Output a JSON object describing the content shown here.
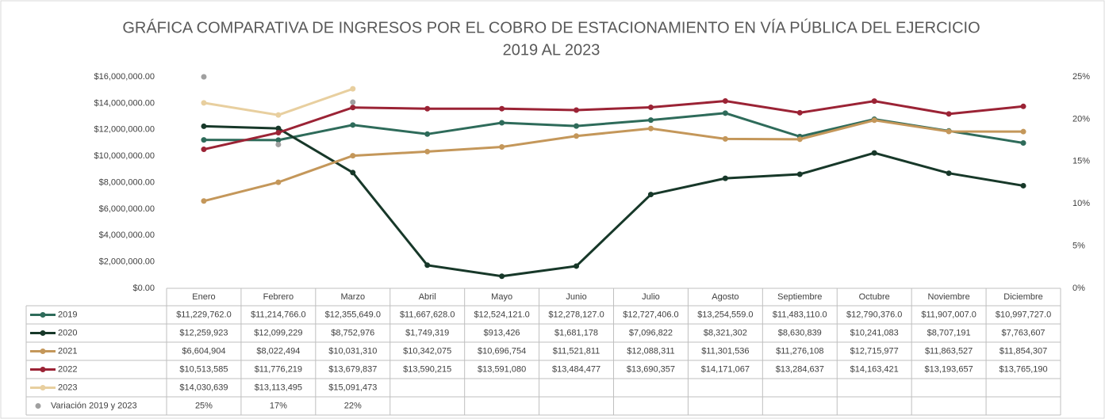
{
  "chart_data": {
    "type": "line",
    "title": [
      "GRÁFICA COMPARATIVA DE INGRESOS POR EL COBRO DE ESTACIONAMIENTO EN VÍA PÚBLICA DEL EJERCICIO",
      "2019 AL 2023"
    ],
    "categories": [
      "Enero",
      "Febrero",
      "Marzo",
      "Abril",
      "Mayo",
      "Junio",
      "Julio",
      "Agosto",
      "Septiembre",
      "Octubre",
      "Noviembre",
      "Diciembre"
    ],
    "ylim": [
      0,
      16000000
    ],
    "yticks": [
      {
        "value": 0,
        "label": "$0.00"
      },
      {
        "value": 2000000,
        "label": "$2,000,000.00"
      },
      {
        "value": 4000000,
        "label": "$4,000,000.00"
      },
      {
        "value": 6000000,
        "label": "$6,000,000.00"
      },
      {
        "value": 8000000,
        "label": "$8,000,000.00"
      },
      {
        "value": 10000000,
        "label": "$10,000,000.00"
      },
      {
        "value": 12000000,
        "label": "$12,000,000.00"
      },
      {
        "value": 14000000,
        "label": "$14,000,000.00"
      },
      {
        "value": 16000000,
        "label": "$16,000,000.00"
      }
    ],
    "y2lim": [
      0,
      25
    ],
    "y2ticks": [
      {
        "value": 0,
        "label": "0%"
      },
      {
        "value": 5,
        "label": "5%"
      },
      {
        "value": 10,
        "label": "10%"
      },
      {
        "value": 15,
        "label": "15%"
      },
      {
        "value": 20,
        "label": "20%"
      },
      {
        "value": 25,
        "label": "25%"
      }
    ],
    "grid": false,
    "series": [
      {
        "name": "2019",
        "color": "#2e6b5a",
        "values": [
          11229762,
          11214766,
          12355649,
          11667628,
          12524121,
          12278127,
          12727406,
          13254559,
          11483110,
          12790376,
          11907007,
          10997727
        ],
        "value_labels": [
          "$11,229,762.0",
          "$11,214,766.0",
          "$12,355,649.0",
          "$11,667,628.0",
          "$12,524,121.0",
          "$12,278,127.0",
          "$12,727,406.0",
          "$13,254,559.0",
          "$11,483,110.0",
          "$12,790,376.0",
          "$11,907,007.0",
          "$10,997,727.0"
        ]
      },
      {
        "name": "2020",
        "color": "#173829",
        "values": [
          12259923,
          12099229,
          8752976,
          1749319,
          913426,
          1681178,
          7096822,
          8321302,
          8630839,
          10241083,
          8707191,
          7763607
        ],
        "value_labels": [
          "$12,259,923",
          "$12,099,229",
          "$8,752,976",
          "$1,749,319",
          "$913,426",
          "$1,681,178",
          "$7,096,822",
          "$8,321,302",
          "$8,630,839",
          "$10,241,083",
          "$8,707,191",
          "$7,763,607"
        ]
      },
      {
        "name": "2021",
        "color": "#c4975a",
        "values": [
          6604904,
          8022494,
          10031310,
          10342075,
          10696754,
          11521811,
          12088311,
          11301536,
          11276108,
          12715977,
          11863527,
          11854307
        ],
        "value_labels": [
          "$6,604,904",
          "$8,022,494",
          "$10,031,310",
          "$10,342,075",
          "$10,696,754",
          "$11,521,811",
          "$12,088,311",
          "$11,301,536",
          "$11,276,108",
          "$12,715,977",
          "$11,863,527",
          "$11,854,307"
        ]
      },
      {
        "name": "2022",
        "color": "#9b2335",
        "values": [
          10513585,
          11776219,
          13679837,
          13590215,
          13591080,
          13484477,
          13690357,
          14171067,
          13284637,
          14163421,
          13193657,
          13765190
        ],
        "value_labels": [
          "$10,513,585",
          "$11,776,219",
          "$13,679,837",
          "$13,590,215",
          "$13,591,080",
          "$13,484,477",
          "$13,690,357",
          "$14,171,067",
          "$13,284,637",
          "$14,163,421",
          "$13,193,657",
          "$13,765,190"
        ]
      },
      {
        "name": "2023",
        "color": "#e8cf9f",
        "values": [
          14030639,
          13113495,
          15091473,
          null,
          null,
          null,
          null,
          null,
          null,
          null,
          null,
          null
        ],
        "value_labels": [
          "$14,030,639",
          "$13,113,495",
          "$15,091,473",
          null,
          null,
          null,
          null,
          null,
          null,
          null,
          null,
          null
        ]
      },
      {
        "name": "Variación 2019 y 2023",
        "color": "#a0a0a0",
        "axis": "y2",
        "type": "scatter",
        "values": [
          25,
          17,
          22,
          null,
          null,
          null,
          null,
          null,
          null,
          null,
          null,
          null
        ],
        "value_labels": [
          "25%",
          "17%",
          "22%",
          null,
          null,
          null,
          null,
          null,
          null,
          null,
          null,
          null
        ]
      }
    ]
  }
}
